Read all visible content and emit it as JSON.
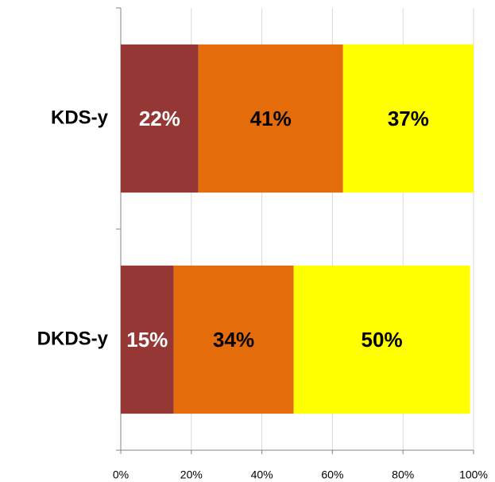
{
  "chart_data": {
    "type": "stacked-barh",
    "categories": [
      "KDS-y",
      "DKDS-y"
    ],
    "series": [
      {
        "color": "#953735",
        "label_color": "#ffffff",
        "values": [
          22,
          15
        ],
        "value_labels": [
          "22%",
          "15%"
        ]
      },
      {
        "color": "#e46c0a",
        "label_color": "#000000",
        "values": [
          41,
          34
        ],
        "value_labels": [
          "41%",
          "34%"
        ]
      },
      {
        "color": "#ffff00",
        "label_color": "#000000",
        "values": [
          37,
          50
        ],
        "value_labels": [
          "37%",
          "50%"
        ]
      }
    ],
    "xlim": [
      0,
      100
    ],
    "xticks": [
      {
        "value": 0,
        "label": "0%"
      },
      {
        "value": 20,
        "label": "20%"
      },
      {
        "value": 40,
        "label": "40%"
      },
      {
        "value": 60,
        "label": "60%"
      },
      {
        "value": 80,
        "label": "80%"
      },
      {
        "value": 100,
        "label": "100%"
      }
    ],
    "grid": true
  }
}
